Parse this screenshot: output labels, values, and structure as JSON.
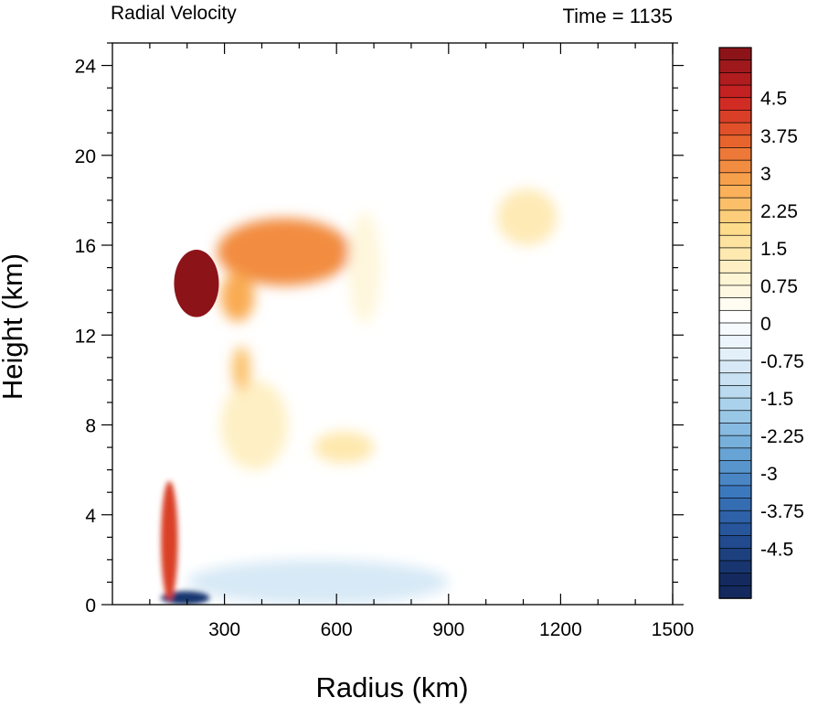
{
  "chart_data": {
    "type": "heatmap",
    "title_left": "Radial Velocity",
    "title_right": "Time = 1135",
    "xlabel": "Radius (km)",
    "ylabel": "Height (km)",
    "xlim": [
      0,
      1500
    ],
    "ylim": [
      0,
      25
    ],
    "x_ticks": [
      300,
      600,
      900,
      1200,
      1500
    ],
    "y_ticks": [
      0,
      4,
      8,
      12,
      16,
      20,
      24
    ],
    "colorbar": {
      "min": -5.25,
      "max": 5.25,
      "step": 0.25,
      "tick_labels": [
        "4.5",
        "3.75",
        "3",
        "2.25",
        "1.5",
        "0.75",
        "0",
        "-0.75",
        "-1.5",
        "-2.25",
        "-3",
        "-3.75",
        "-4.5"
      ],
      "tick_values": [
        4.5,
        3.75,
        3,
        2.25,
        1.5,
        0.75,
        0,
        -0.75,
        -1.5,
        -2.25,
        -3,
        -3.75,
        -4.5
      ]
    },
    "features": [
      {
        "kind": "outflow-core",
        "x": [
          165,
          285
        ],
        "y": [
          12.8,
          15.8
        ],
        "value": 5.5
      },
      {
        "kind": "outflow-jet",
        "x": [
          280,
          640
        ],
        "y": [
          14.2,
          17.2
        ],
        "value": 3.0
      },
      {
        "kind": "outflow-cell",
        "x": [
          290,
          380
        ],
        "y": [
          12.6,
          14.8
        ],
        "value": 2.6
      },
      {
        "kind": "inflow-layer",
        "x": [
          130,
          260
        ],
        "y": [
          0,
          0.6
        ],
        "value": -5.0
      },
      {
        "kind": "inflow-layer",
        "x": [
          200,
          900
        ],
        "y": [
          0,
          2.0
        ],
        "value": -1.0
      },
      {
        "kind": "eyewall-streak",
        "x": [
          130,
          175
        ],
        "y": [
          0.2,
          5.5
        ],
        "value": 4.0
      },
      {
        "kind": "mid-outflow",
        "x": [
          290,
          470
        ],
        "y": [
          6,
          10
        ],
        "value": 1.0
      },
      {
        "kind": "mid-outflow",
        "x": [
          320,
          370
        ],
        "y": [
          9.5,
          11.5
        ],
        "value": 2.2
      },
      {
        "kind": "mid-outflow",
        "x": [
          540,
          700
        ],
        "y": [
          6.3,
          7.7
        ],
        "value": 1.3
      },
      {
        "kind": "upper-cell",
        "x": [
          1030,
          1190
        ],
        "y": [
          16,
          18.5
        ],
        "value": 1.2
      },
      {
        "kind": "upper-cell",
        "x": [
          630,
          720
        ],
        "y": [
          12.5,
          17.5
        ],
        "value": 0.6
      }
    ]
  }
}
